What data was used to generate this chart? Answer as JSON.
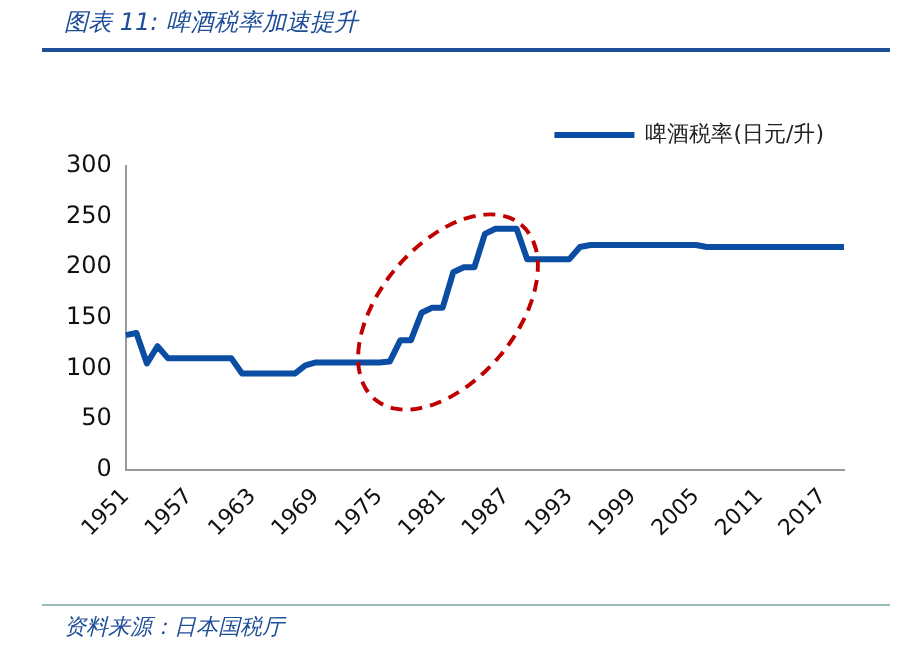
{
  "chart_data": {
    "type": "line",
    "title": "图表 11:  啤酒税率加速提升",
    "categories": [
      "1951",
      null,
      null,
      null,
      null,
      null,
      "1957",
      null,
      null,
      null,
      null,
      null,
      "1963",
      null,
      null,
      null,
      null,
      null,
      "1969",
      null,
      null,
      null,
      null,
      null,
      "1975",
      null,
      null,
      null,
      null,
      null,
      "1981",
      null,
      null,
      null,
      null,
      null,
      "1987",
      null,
      null,
      null,
      null,
      null,
      "1993",
      null,
      null,
      null,
      null,
      null,
      "1999",
      null,
      null,
      null,
      null,
      null,
      "2005",
      null,
      null,
      null,
      null,
      null,
      "2011",
      null,
      null,
      null,
      null,
      null,
      "2017",
      null,
      null
    ],
    "series": [
      {
        "name": "啤酒税率(日元/升)",
        "color": "#0b4da2",
        "values": [
          133,
          135,
          105,
          122,
          110,
          110,
          110,
          110,
          110,
          110,
          110,
          95,
          95,
          95,
          95,
          95,
          95,
          103,
          106,
          106,
          106,
          106,
          106,
          106,
          106,
          107,
          128,
          128,
          155,
          160,
          160,
          195,
          200,
          200,
          233,
          238,
          238,
          238,
          208,
          208,
          208,
          208,
          208,
          220,
          222,
          222,
          222,
          222,
          222,
          222,
          222,
          222,
          222,
          222,
          222,
          220,
          220,
          220,
          220,
          220,
          220,
          220,
          220,
          220,
          220,
          220,
          220,
          220,
          220
        ]
      }
    ],
    "ylim": [
      0,
      300
    ],
    "yticks": [
      0,
      50,
      100,
      150,
      200,
      250,
      300
    ],
    "grid": false,
    "legend": "top right",
    "marker": "none",
    "line_style": "solid",
    "annotations": [
      "资料来源：日本国税厅"
    ]
  }
}
